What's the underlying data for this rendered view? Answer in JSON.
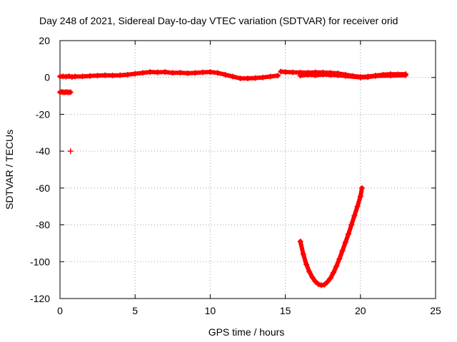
{
  "chart_data": {
    "type": "scatter",
    "title": "Day 248 of 2021, Sidereal Day-to-day VTEC variation (SDTVAR) for receiver orid",
    "xlabel": "GPS time / hours",
    "ylabel": "SDTVAR / TECUs",
    "xlim": [
      0,
      25
    ],
    "ylim": [
      -120,
      20
    ],
    "xticks": [
      0,
      5,
      10,
      15,
      20,
      25
    ],
    "yticks": [
      20,
      0,
      -20,
      -40,
      -60,
      -80,
      -100,
      -120
    ],
    "grid": true,
    "marker": "+",
    "color": "#ff0000",
    "series": [
      {
        "values": [
          [
            0.0,
            0.5
          ],
          [
            0.2,
            0.6
          ],
          [
            0.4,
            0.4
          ],
          [
            0.6,
            0.7
          ],
          [
            0.8,
            0.3
          ],
          [
            1.0,
            0.5
          ],
          [
            1.5,
            0.6
          ],
          [
            2.0,
            0.8
          ],
          [
            2.5,
            1.0
          ],
          [
            3.0,
            1.2
          ],
          [
            3.5,
            1.1
          ],
          [
            4.0,
            1.2
          ],
          [
            4.5,
            1.5
          ],
          [
            5.0,
            2.0
          ],
          [
            5.5,
            2.5
          ],
          [
            6.0,
            3.0
          ],
          [
            6.5,
            2.8
          ],
          [
            7.0,
            3.0
          ],
          [
            7.5,
            2.5
          ],
          [
            8.0,
            2.6
          ],
          [
            8.5,
            2.3
          ],
          [
            9.0,
            2.5
          ],
          [
            9.5,
            2.8
          ],
          [
            10.0,
            3.0
          ],
          [
            10.5,
            2.5
          ],
          [
            11.0,
            1.5
          ],
          [
            11.5,
            0.5
          ],
          [
            12.0,
            -0.5
          ],
          [
            12.5,
            -0.5
          ],
          [
            13.0,
            -0.3
          ],
          [
            13.5,
            0.0
          ],
          [
            14.0,
            0.5
          ],
          [
            14.5,
            1.0
          ]
        ]
      },
      {
        "values": [
          [
            0.0,
            -8.0
          ],
          [
            0.1,
            -7.8
          ],
          [
            0.2,
            -8.0
          ],
          [
            0.3,
            -8.1
          ],
          [
            0.4,
            -7.9
          ],
          [
            0.5,
            -8.0
          ],
          [
            0.6,
            -8.1
          ],
          [
            0.7,
            -8.0
          ]
        ]
      },
      {
        "values": [
          [
            0.7,
            -40.0
          ]
        ]
      },
      {
        "values": [
          [
            14.7,
            3.2
          ],
          [
            15.0,
            3.0
          ],
          [
            15.5,
            2.8
          ],
          [
            16.0,
            2.7
          ],
          [
            16.5,
            2.6
          ],
          [
            17.0,
            2.8
          ],
          [
            17.5,
            2.7
          ],
          [
            18.0,
            2.5
          ],
          [
            18.5,
            2.2
          ],
          [
            19.0,
            1.5
          ],
          [
            19.5,
            0.8
          ],
          [
            20.0,
            0.3
          ],
          [
            20.5,
            0.5
          ],
          [
            21.0,
            1.0
          ],
          [
            21.5,
            1.5
          ],
          [
            22.0,
            1.8
          ],
          [
            22.5,
            1.7
          ],
          [
            23.0,
            1.8
          ]
        ]
      },
      {
        "values": [
          [
            16.0,
            1.0
          ],
          [
            16.5,
            1.5
          ],
          [
            17.0,
            1.2
          ],
          [
            17.5,
            1.6
          ],
          [
            18.0,
            1.4
          ],
          [
            18.5,
            1.2
          ],
          [
            19.0,
            0.8
          ],
          [
            20.0,
            0.0
          ],
          [
            20.5,
            0.2
          ],
          [
            21.0,
            0.8
          ],
          [
            22.0,
            1.0
          ],
          [
            23.0,
            1.2
          ]
        ]
      },
      {
        "values": [
          [
            16.0,
            -89.0
          ],
          [
            16.2,
            -96.0
          ],
          [
            16.4,
            -101.5
          ],
          [
            16.6,
            -105.5
          ],
          [
            16.8,
            -108.5
          ],
          [
            17.0,
            -110.8
          ],
          [
            17.2,
            -112.2
          ],
          [
            17.4,
            -112.8
          ],
          [
            17.6,
            -112.5
          ],
          [
            17.8,
            -111.0
          ],
          [
            18.0,
            -109.0
          ],
          [
            18.2,
            -106.0
          ],
          [
            18.4,
            -102.5
          ],
          [
            18.6,
            -98.5
          ],
          [
            18.8,
            -94.0
          ],
          [
            19.0,
            -89.5
          ],
          [
            19.2,
            -85.0
          ],
          [
            19.4,
            -80.0
          ],
          [
            19.6,
            -75.0
          ],
          [
            19.8,
            -70.0
          ],
          [
            20.0,
            -64.5
          ],
          [
            20.1,
            -60.0
          ]
        ]
      }
    ]
  }
}
